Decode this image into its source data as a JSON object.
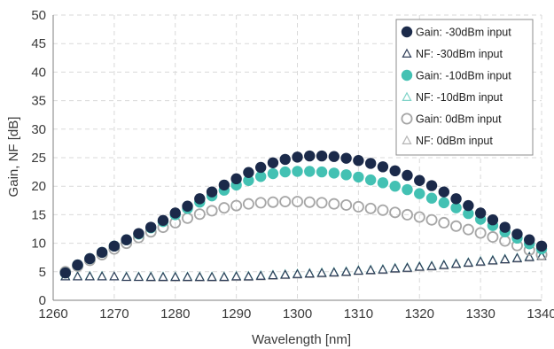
{
  "chart_data": {
    "type": "scatter",
    "title": "",
    "xlabel": "Wavelength [nm]",
    "ylabel": "Gain, NF [dB]",
    "xlim": [
      1260,
      1340
    ],
    "ylim": [
      0,
      50
    ],
    "xticks": [
      "1260",
      "1270",
      "1280",
      "1290",
      "1300",
      "1310",
      "1320",
      "1330",
      "1340"
    ],
    "yticks": [
      "0",
      "5",
      "10",
      "15",
      "20",
      "25",
      "30",
      "35",
      "40",
      "45",
      "50"
    ],
    "grid": "dashed",
    "legend_position": "top-right",
    "x": [
      1262,
      1264,
      1266,
      1268,
      1270,
      1272,
      1274,
      1276,
      1278,
      1280,
      1282,
      1284,
      1286,
      1288,
      1290,
      1292,
      1294,
      1296,
      1298,
      1300,
      1302,
      1304,
      1306,
      1308,
      1310,
      1312,
      1314,
      1316,
      1318,
      1320,
      1322,
      1324,
      1326,
      1328,
      1330,
      1332,
      1334,
      1336,
      1338,
      1340
    ],
    "series": [
      {
        "name": "Gain: -30dBm input",
        "marker": "filled-circle",
        "color": "#1b2a4a",
        "values": [
          4.8,
          6.2,
          7.3,
          8.4,
          9.5,
          10.6,
          11.7,
          12.8,
          14.0,
          15.3,
          16.5,
          17.8,
          19.0,
          20.2,
          21.3,
          22.4,
          23.3,
          24.1,
          24.7,
          25.1,
          25.3,
          25.3,
          25.2,
          24.9,
          24.5,
          24.0,
          23.4,
          22.7,
          21.9,
          21.0,
          20.1,
          19.0,
          17.8,
          16.6,
          15.3,
          14.1,
          12.8,
          11.6,
          10.6,
          9.5
        ]
      },
      {
        "name": "NF: -30dBm input",
        "marker": "open-triangle",
        "color": "#2f3d58",
        "values": [
          4.2,
          4.2,
          4.2,
          4.2,
          4.2,
          4.1,
          4.1,
          4.1,
          4.1,
          4.1,
          4.1,
          4.1,
          4.1,
          4.1,
          4.2,
          4.2,
          4.3,
          4.4,
          4.5,
          4.6,
          4.7,
          4.8,
          4.9,
          5.0,
          5.2,
          5.3,
          5.4,
          5.6,
          5.7,
          5.9,
          6.0,
          6.2,
          6.4,
          6.6,
          6.8,
          7.0,
          7.2,
          7.4,
          7.6,
          7.8
        ]
      },
      {
        "name": "Gain: -10dBm input",
        "marker": "filled-circle",
        "color": "#43c1b3",
        "values": [
          4.8,
          6.2,
          7.3,
          8.4,
          9.5,
          10.6,
          11.6,
          12.7,
          13.8,
          15.0,
          16.1,
          17.2,
          18.3,
          19.3,
          20.2,
          21.0,
          21.7,
          22.2,
          22.5,
          22.6,
          22.6,
          22.5,
          22.3,
          22.0,
          21.6,
          21.1,
          20.6,
          20.0,
          19.4,
          18.7,
          17.9,
          17.1,
          16.2,
          15.2,
          14.2,
          13.1,
          12.0,
          10.9,
          9.9,
          9.0
        ]
      },
      {
        "name": "NF: -10dBm input",
        "marker": "open-triangle",
        "color": "#7fd3c8",
        "values": [
          4.3,
          4.3,
          4.3,
          4.3,
          4.2,
          4.2,
          4.2,
          4.2,
          4.2,
          4.2,
          4.2,
          4.2,
          4.2,
          4.2,
          4.3,
          4.3,
          4.4,
          4.5,
          4.6,
          4.7,
          4.8,
          4.9,
          5.0,
          5.1,
          5.3,
          5.4,
          5.5,
          5.7,
          5.8,
          6.0,
          6.1,
          6.3,
          6.5,
          6.7,
          6.9,
          7.1,
          7.3,
          7.5,
          7.7,
          7.9
        ]
      },
      {
        "name": "Gain: 0dBm input",
        "marker": "open-circle",
        "color": "#a6a6a6",
        "values": [
          5.0,
          6.0,
          7.0,
          8.0,
          9.0,
          10.0,
          11.0,
          12.0,
          12.8,
          13.6,
          14.4,
          15.1,
          15.7,
          16.2,
          16.6,
          16.9,
          17.1,
          17.2,
          17.3,
          17.3,
          17.2,
          17.1,
          16.9,
          16.7,
          16.4,
          16.1,
          15.8,
          15.4,
          15.0,
          14.6,
          14.1,
          13.6,
          13.0,
          12.4,
          11.8,
          11.1,
          10.4,
          9.6,
          8.8,
          8.0
        ]
      },
      {
        "name": "NF: 0dBm input",
        "marker": "open-triangle",
        "color": "#b5b5b5",
        "values": [
          4.2,
          4.2,
          4.2,
          4.2,
          4.2,
          4.1,
          4.1,
          4.0,
          4.0,
          4.0,
          4.0,
          4.0,
          4.0,
          4.0,
          4.1,
          4.1,
          4.2,
          4.3,
          4.4,
          4.5,
          4.6,
          4.7,
          4.8,
          4.9,
          5.1,
          5.2,
          5.3,
          5.5,
          5.6,
          5.8,
          5.9,
          6.1,
          6.3,
          6.5,
          6.7,
          6.9,
          7.1,
          7.3,
          7.5,
          7.7
        ]
      }
    ]
  }
}
